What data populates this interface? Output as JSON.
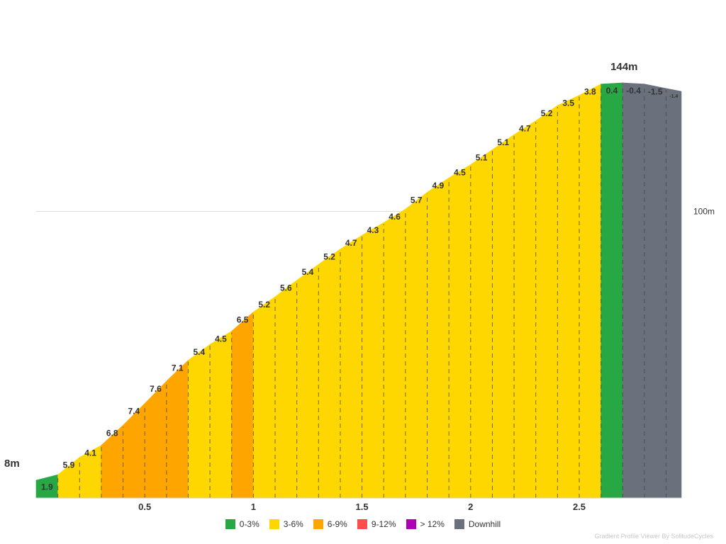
{
  "chart_data": {
    "type": "area",
    "title": "",
    "xlabel": "",
    "ylabel": "",
    "x_unit": "km",
    "xlim": [
      0,
      2.97
    ],
    "ylim": [
      8,
      144
    ],
    "x_ticks": [
      "0.5",
      "1",
      "1.5",
      "2",
      "2.5"
    ],
    "x_tick_values": [
      0.5,
      1,
      1.5,
      2,
      2.5
    ],
    "y_gridlines": [
      {
        "value": 100,
        "label": "100m"
      }
    ],
    "start_label": "8m",
    "peak_label": "144m",
    "segment_length_km": 0.1,
    "segments": [
      {
        "gradient": "1.9",
        "category": "0-3%"
      },
      {
        "gradient": "5.9",
        "category": "3-6%"
      },
      {
        "gradient": "4.1",
        "category": "3-6%"
      },
      {
        "gradient": "6.8",
        "category": "6-9%"
      },
      {
        "gradient": "7.4",
        "category": "6-9%"
      },
      {
        "gradient": "7.6",
        "category": "6-9%"
      },
      {
        "gradient": "7.1",
        "category": "6-9%"
      },
      {
        "gradient": "5.4",
        "category": "3-6%"
      },
      {
        "gradient": "4.5",
        "category": "3-6%"
      },
      {
        "gradient": "6.5",
        "category": "6-9%"
      },
      {
        "gradient": "5.2",
        "category": "3-6%"
      },
      {
        "gradient": "5.6",
        "category": "3-6%"
      },
      {
        "gradient": "5.4",
        "category": "3-6%"
      },
      {
        "gradient": "5.2",
        "category": "3-6%"
      },
      {
        "gradient": "4.7",
        "category": "3-6%"
      },
      {
        "gradient": "4.3",
        "category": "3-6%"
      },
      {
        "gradient": "4.6",
        "category": "3-6%"
      },
      {
        "gradient": "5.7",
        "category": "3-6%"
      },
      {
        "gradient": "4.9",
        "category": "3-6%"
      },
      {
        "gradient": "4.5",
        "category": "3-6%"
      },
      {
        "gradient": "5.1",
        "category": "3-6%"
      },
      {
        "gradient": "5.1",
        "category": "3-6%"
      },
      {
        "gradient": "4.7",
        "category": "3-6%"
      },
      {
        "gradient": "5.2",
        "category": "3-6%"
      },
      {
        "gradient": "3.5",
        "category": "3-6%"
      },
      {
        "gradient": "3.8",
        "category": "3-6%"
      },
      {
        "gradient": "0.4",
        "category": "0-3%"
      },
      {
        "gradient": "-0.4",
        "category": "Downhill"
      },
      {
        "gradient": "-1.5",
        "category": "Downhill"
      },
      {
        "gradient": "-1.4",
        "category": "Downhill"
      }
    ],
    "legend_position": "bottom-center",
    "legend": [
      {
        "label": "0-3%",
        "color": "#28a745"
      },
      {
        "label": "3-6%",
        "color": "#ffd700"
      },
      {
        "label": "6-9%",
        "color": "#ffa500"
      },
      {
        "label": "9-12%",
        "color": "#ff4d4d"
      },
      {
        "label": "> 12%",
        "color": "#b000b5"
      },
      {
        "label": "Downhill",
        "color": "#6b717c"
      }
    ]
  },
  "credit": "Gradient Profile Viewer By SolitudeCycles"
}
